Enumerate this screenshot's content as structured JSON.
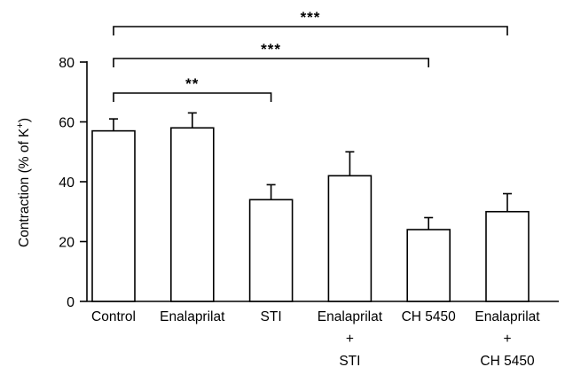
{
  "chart_data": {
    "type": "bar",
    "title": "",
    "xlabel": "",
    "ylabel": "Contraction (% of K",
    "ylabel_sup": "+",
    "ylabel_close": ")",
    "ylim": [
      0,
      80
    ],
    "yticks": [
      0,
      20,
      40,
      60,
      80
    ],
    "grid": false,
    "legend": "none",
    "categories": [
      [
        "Control"
      ],
      [
        "Enalaprilat"
      ],
      [
        "STI"
      ],
      [
        "Enalaprilat",
        "+",
        "STI"
      ],
      [
        "CH 5450"
      ],
      [
        "Enalaprilat",
        "+",
        "CH 5450"
      ]
    ],
    "values": [
      57,
      58,
      34,
      42,
      24,
      30
    ],
    "errors": [
      4,
      5,
      5,
      8,
      4,
      6
    ],
    "bar_fill": "#ffffff",
    "bar_stroke": "#000000",
    "significance": [
      {
        "from": 0,
        "to": 2,
        "label": "**",
        "level": 0
      },
      {
        "from": 0,
        "to": 4,
        "label": "***",
        "level": 1
      },
      {
        "from": 0,
        "to": 5,
        "label": "***",
        "level": 2
      }
    ]
  }
}
